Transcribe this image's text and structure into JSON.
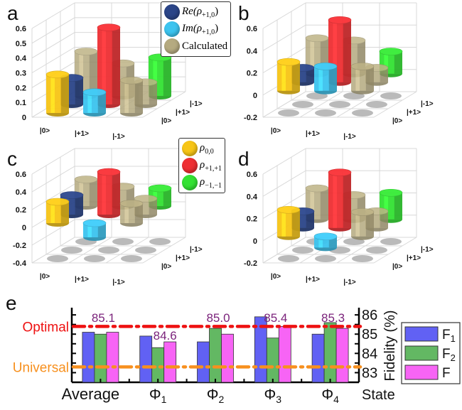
{
  "figure": {
    "legend_top": [
      {
        "label_main": "Re(ρ",
        "label_sub": "+1,0",
        "label_end": ")",
        "color": "#2b4588"
      },
      {
        "label_main": "Im(ρ",
        "label_sub": "+1,0",
        "label_end": ")",
        "color": "#3cc4ef"
      },
      {
        "label_main": "Calculated",
        "label_sub": "",
        "label_end": "",
        "color": "#b5aa80"
      }
    ],
    "legend_mid": [
      {
        "label_main": "ρ",
        "label_sub": "0,0",
        "color": "#f7c516"
      },
      {
        "label_main": "ρ",
        "label_sub": "+1,+1",
        "color": "#ee2f33"
      },
      {
        "label_main": "ρ",
        "label_sub": "−1,−1",
        "color": "#33e233"
      }
    ]
  },
  "chart_data": [
    {
      "type": "bar3d",
      "panel": "a",
      "x_tick_labels": [
        "|0>",
        "|+1>",
        "|-1>"
      ],
      "y_tick_labels": [
        "|0>",
        "|+1>",
        "|-1>"
      ],
      "z_ticks": [
        0,
        0.1,
        0.2,
        0.3,
        0.4,
        0.5,
        0.6
      ],
      "zlim": [
        0,
        0.6
      ],
      "bars": [
        {
          "series": "rho00",
          "row": 0,
          "col": 0,
          "value": 0.26
        },
        {
          "series": "Re",
          "row": 1,
          "col": 0,
          "value": 0.18
        },
        {
          "series": "Calculated",
          "row": 2,
          "col": 0,
          "value": 0.3
        },
        {
          "series": "Im",
          "row": 0,
          "col": 1,
          "value": 0.14
        },
        {
          "series": "rho+1+1",
          "row": 1,
          "col": 1,
          "value": 0.52
        },
        {
          "series": "Calculated",
          "row": 2,
          "col": 1,
          "value": 0.22
        },
        {
          "series": "Calculated",
          "row": 0,
          "col": 2,
          "value": 0.22
        },
        {
          "series": "Calculated",
          "row": 1,
          "col": 2,
          "value": 0.15
        },
        {
          "series": "rho-1-1",
          "row": 2,
          "col": 2,
          "value": 0.26
        }
      ]
    },
    {
      "type": "bar3d",
      "panel": "b",
      "x_tick_labels": [
        "|0>",
        "|+1>",
        "|-1>"
      ],
      "y_tick_labels": [
        "|0>",
        "|+1>",
        "|-1>"
      ],
      "z_ticks": [
        -0.2,
        0,
        0.2,
        0.4,
        0.6
      ],
      "zlim": [
        -0.2,
        0.6
      ],
      "bars": [
        {
          "series": "rho00",
          "row": 0,
          "col": 0,
          "value": 0.26
        },
        {
          "series": "Re",
          "row": 1,
          "col": 0,
          "value": 0.13
        },
        {
          "series": "Calculated",
          "row": 2,
          "col": 0,
          "value": 0.32
        },
        {
          "series": "Im",
          "row": 0,
          "col": 1,
          "value": 0.22
        },
        {
          "series": "rho+1+1",
          "row": 1,
          "col": 1,
          "value": 0.56
        },
        {
          "series": "Calculated",
          "row": 2,
          "col": 1,
          "value": 0.3
        },
        {
          "series": "Calculated",
          "row": 0,
          "col": 2,
          "value": 0.22
        },
        {
          "series": "Calculated",
          "row": 1,
          "col": 2,
          "value": 0.13
        },
        {
          "series": "rho-1-1",
          "row": 2,
          "col": 2,
          "value": 0.2
        }
      ]
    },
    {
      "type": "bar3d",
      "panel": "c",
      "x_tick_labels": [
        "|0>",
        "|+1>",
        "|-1>"
      ],
      "y_tick_labels": [
        "|0>",
        "|+1>",
        "|-1>"
      ],
      "z_ticks": [
        -0.4,
        -0.2,
        0,
        0.2,
        0.4,
        0.6
      ],
      "zlim": [
        -0.4,
        0.6
      ],
      "bars": [
        {
          "series": "rho00",
          "row": 0,
          "col": 0,
          "value": 0.24
        },
        {
          "series": "Re",
          "row": 1,
          "col": 0,
          "value": 0.22
        },
        {
          "series": "Calculated",
          "row": 2,
          "col": 0,
          "value": 0.3
        },
        {
          "series": "Im",
          "row": 0,
          "col": 1,
          "value": -0.16
        },
        {
          "series": "rho+1+1",
          "row": 1,
          "col": 1,
          "value": 0.48
        },
        {
          "series": "Calculated",
          "row": 2,
          "col": 1,
          "value": 0.22
        },
        {
          "series": "Calculated",
          "row": 0,
          "col": 2,
          "value": 0.22
        },
        {
          "series": "Calculated",
          "row": 1,
          "col": 2,
          "value": 0.18
        },
        {
          "series": "rho-1-1",
          "row": 2,
          "col": 2,
          "value": 0.2
        }
      ]
    },
    {
      "type": "bar3d",
      "panel": "d",
      "x_tick_labels": [
        "|0>",
        "|+1>",
        "|-1>"
      ],
      "y_tick_labels": [
        "|0>",
        "|+1>",
        "|-1>"
      ],
      "z_ticks": [
        -0.2,
        0,
        0.2,
        0.4,
        0.6
      ],
      "zlim": [
        -0.2,
        0.6
      ],
      "bars": [
        {
          "series": "rho00",
          "row": 0,
          "col": 0,
          "value": 0.24
        },
        {
          "series": "Re",
          "row": 1,
          "col": 0,
          "value": 0.15
        },
        {
          "series": "Calculated",
          "row": 2,
          "col": 0,
          "value": 0.28
        },
        {
          "series": "Im",
          "row": 0,
          "col": 1,
          "value": -0.1
        },
        {
          "series": "rho+1+1",
          "row": 1,
          "col": 1,
          "value": 0.5
        },
        {
          "series": "Calculated",
          "row": 2,
          "col": 1,
          "value": 0.22
        },
        {
          "series": "Calculated",
          "row": 0,
          "col": 2,
          "value": 0.22
        },
        {
          "series": "Calculated",
          "row": 1,
          "col": 2,
          "value": 0.15
        },
        {
          "series": "rho-1-1",
          "row": 2,
          "col": 2,
          "value": 0.24
        }
      ]
    },
    {
      "type": "bar",
      "panel": "e",
      "categories": [
        "Average",
        "Φ1",
        "Φ2",
        "Φ3",
        "Φ4"
      ],
      "category_labels": [
        {
          "main": "Average",
          "sub": ""
        },
        {
          "main": "Φ",
          "sub": "1"
        },
        {
          "main": "Φ",
          "sub": "2"
        },
        {
          "main": "Φ",
          "sub": "3"
        },
        {
          "main": "Φ",
          "sub": "4"
        }
      ],
      "series": [
        {
          "name": "F1",
          "label_main": "F",
          "label_sub": "1",
          "color": "#6161f4",
          "values": [
            85.1,
            84.9,
            84.6,
            85.9,
            85.0
          ]
        },
        {
          "name": "F2",
          "label_main": "F",
          "label_sub": "2",
          "color": "#63b863",
          "values": [
            85.0,
            84.3,
            85.3,
            84.8,
            85.6
          ]
        },
        {
          "name": "F",
          "label_main": "F",
          "label_sub": "",
          "color": "#f764f5",
          "values": [
            85.1,
            84.6,
            85.0,
            85.4,
            85.3
          ]
        }
      ],
      "data_labels": [
        "85.1",
        "84.6",
        "85.0",
        "85.4",
        "85.3"
      ],
      "reference_lines": [
        {
          "label": "Optimal",
          "value": 85.4,
          "color": "#ee1111"
        },
        {
          "label": "Universal",
          "value": 83.3,
          "color": "#f7901e"
        }
      ],
      "xlabel": "State",
      "ylabel": "Fidelity (%)",
      "y_ticks": [
        83,
        84,
        85,
        86
      ],
      "ylim": [
        82.5,
        86.3
      ],
      "legend": "right"
    }
  ],
  "panel_letters": [
    "a",
    "b",
    "c",
    "d",
    "e"
  ],
  "series_colors": {
    "rho00": "#f7c516",
    "Re": "#2b4588",
    "Im": "#3cc4ef",
    "rho+1+1": "#ee2f33",
    "rho-1-1": "#33e233",
    "Calculated": "#b5aa80"
  }
}
